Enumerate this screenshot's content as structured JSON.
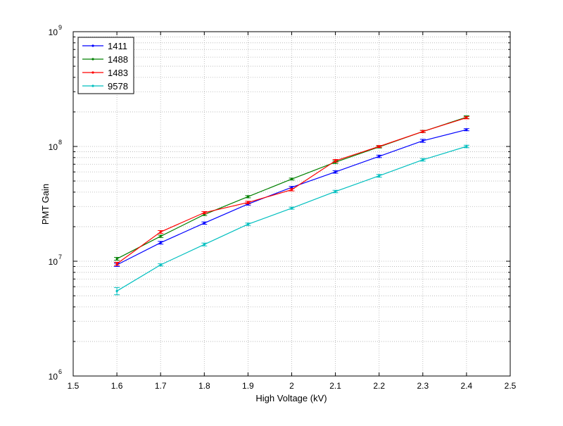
{
  "chart_data": {
    "type": "line",
    "title": "",
    "xlabel": "High Voltage (kV)",
    "ylabel": "PMT Gain",
    "xlim": [
      1.5,
      2.5
    ],
    "ylim": [
      1000000,
      1000000000
    ],
    "yscale": "log",
    "grid": true,
    "legend_position": "top-left",
    "x_ticks": [
      "1.5",
      "1.6",
      "1.7",
      "1.8",
      "1.9",
      "2",
      "2.1",
      "2.2",
      "2.3",
      "2.4",
      "2.5"
    ],
    "y_ticks": [
      {
        "base": "10",
        "exp": "6",
        "value": 1000000
      },
      {
        "base": "10",
        "exp": "7",
        "value": 10000000
      },
      {
        "base": "10",
        "exp": "8",
        "value": 100000000
      },
      {
        "base": "10",
        "exp": "9",
        "value": 1000000000
      }
    ],
    "x": [
      1.6,
      1.7,
      1.8,
      1.9,
      2.0,
      2.1,
      2.2,
      2.3,
      2.4
    ],
    "series": [
      {
        "name": "1411",
        "color": "#0000ff",
        "values": [
          9300000,
          14500000,
          21500000,
          31500000,
          44000000,
          60000000,
          82000000,
          112000000,
          140000000
        ],
        "errors": [
          300000,
          400000,
          500000,
          700000,
          900000,
          1500000,
          2000000,
          3500000,
          3000000
        ]
      },
      {
        "name": "1488",
        "color": "#008000",
        "values": [
          10500000,
          16500000,
          25500000,
          36500000,
          52000000,
          73000000,
          99000000,
          135000000,
          180000000
        ],
        "errors": [
          300000,
          400000,
          500000,
          800000,
          1000000,
          2000000,
          2000000,
          3000000,
          5000000
        ]
      },
      {
        "name": "1483",
        "color": "#ff0000",
        "values": [
          9500000,
          18000000,
          26500000,
          32500000,
          42000000,
          75000000,
          100000000,
          135000000,
          178000000
        ],
        "errors": [
          300000,
          500000,
          600000,
          800000,
          1000000,
          2000000,
          2000000,
          3000000,
          4000000
        ]
      },
      {
        "name": "9578",
        "color": "#00bfbf",
        "values": [
          5500000,
          9300000,
          14000000,
          21000000,
          29000000,
          40500000,
          55500000,
          76500000,
          100000000
        ],
        "errors": [
          400000,
          200000,
          400000,
          500000,
          600000,
          1000000,
          1500000,
          2000000,
          2500000
        ]
      }
    ]
  }
}
